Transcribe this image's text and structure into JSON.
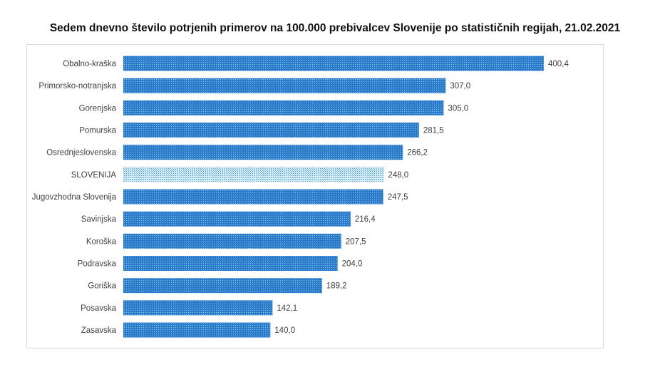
{
  "chart_data": {
    "type": "bar",
    "orientation": "horizontal",
    "title": "Sedem dnevno število potrjenih primerov na 100.000 prebivalcev Slovenije po statističnih regijah, 21.02.2021",
    "xlabel": "",
    "ylabel": "",
    "grid": false,
    "legend": "none",
    "xlim": [
      0,
      400.4
    ],
    "categories": [
      "Obalno-kraška",
      "Primorsko-notranjska",
      "Gorenjska",
      "Pomurska",
      "Osrednjeslovenska",
      "SLOVENIJA",
      "Jugovzhodna Slovenija",
      "Savinjska",
      "Koroška",
      "Podravska",
      "Goriška",
      "Posavska",
      "Zasavska"
    ],
    "values": [
      400.4,
      307.0,
      305.0,
      281.5,
      266.2,
      248.0,
      247.5,
      216.4,
      207.5,
      204.0,
      189.2,
      142.1,
      140.0
    ],
    "data_labels": [
      "400,4",
      "307,0",
      "305,0",
      "281,5",
      "266,2",
      "248,0",
      "247,5",
      "216,4",
      "207,5",
      "204,0",
      "189,2",
      "142,1",
      "140,0"
    ],
    "highlight_category": "SLOVENIJA",
    "colors": {
      "bar": "#2e7fd0",
      "bar_dots": "#8cc4f0",
      "highlight": "#4a9ee0",
      "highlight_dots": "#d8eefc"
    }
  }
}
